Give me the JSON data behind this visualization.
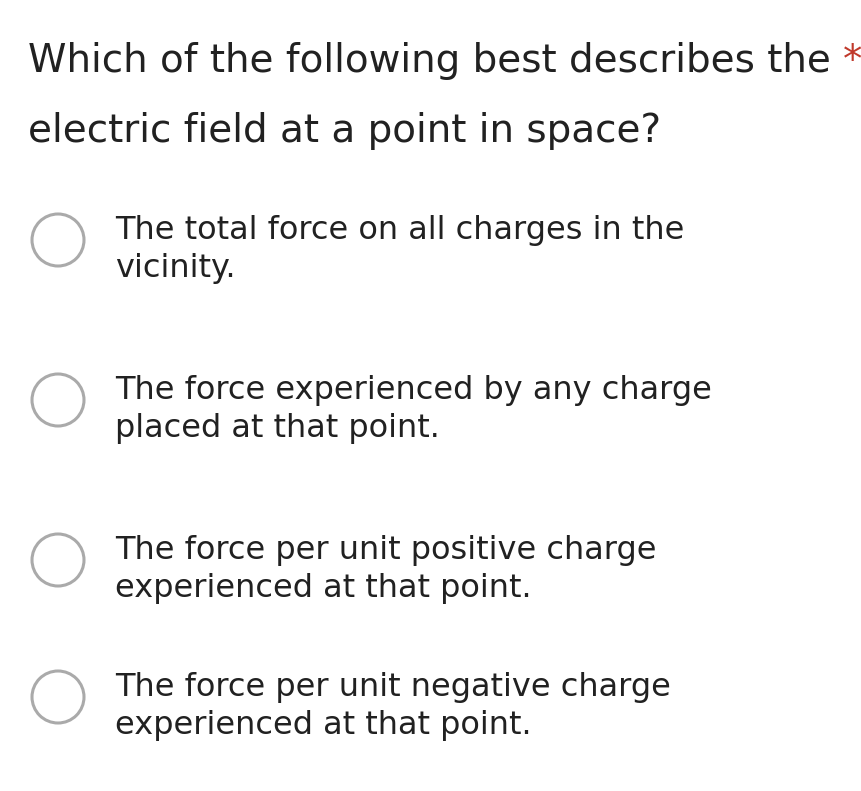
{
  "background_color": "#ffffff",
  "question_line1": "Which of the following best describes the ",
  "question_line2": "electric field at a point in space?",
  "asterisk": "*",
  "asterisk_color": "#c0392b",
  "question_color": "#212121",
  "question_fontsize": 28,
  "options": [
    [
      "The total force on all charges in the",
      "vicinity."
    ],
    [
      "The force experienced by any charge",
      "placed at that point."
    ],
    [
      "The force per unit positive charge",
      "experienced at that point."
    ],
    [
      "The force per unit negative charge",
      "experienced at that point."
    ]
  ],
  "option_color": "#212121",
  "option_fontsize": 23,
  "circle_edge_color": "#aaaaaa",
  "circle_linewidth": 2.2
}
